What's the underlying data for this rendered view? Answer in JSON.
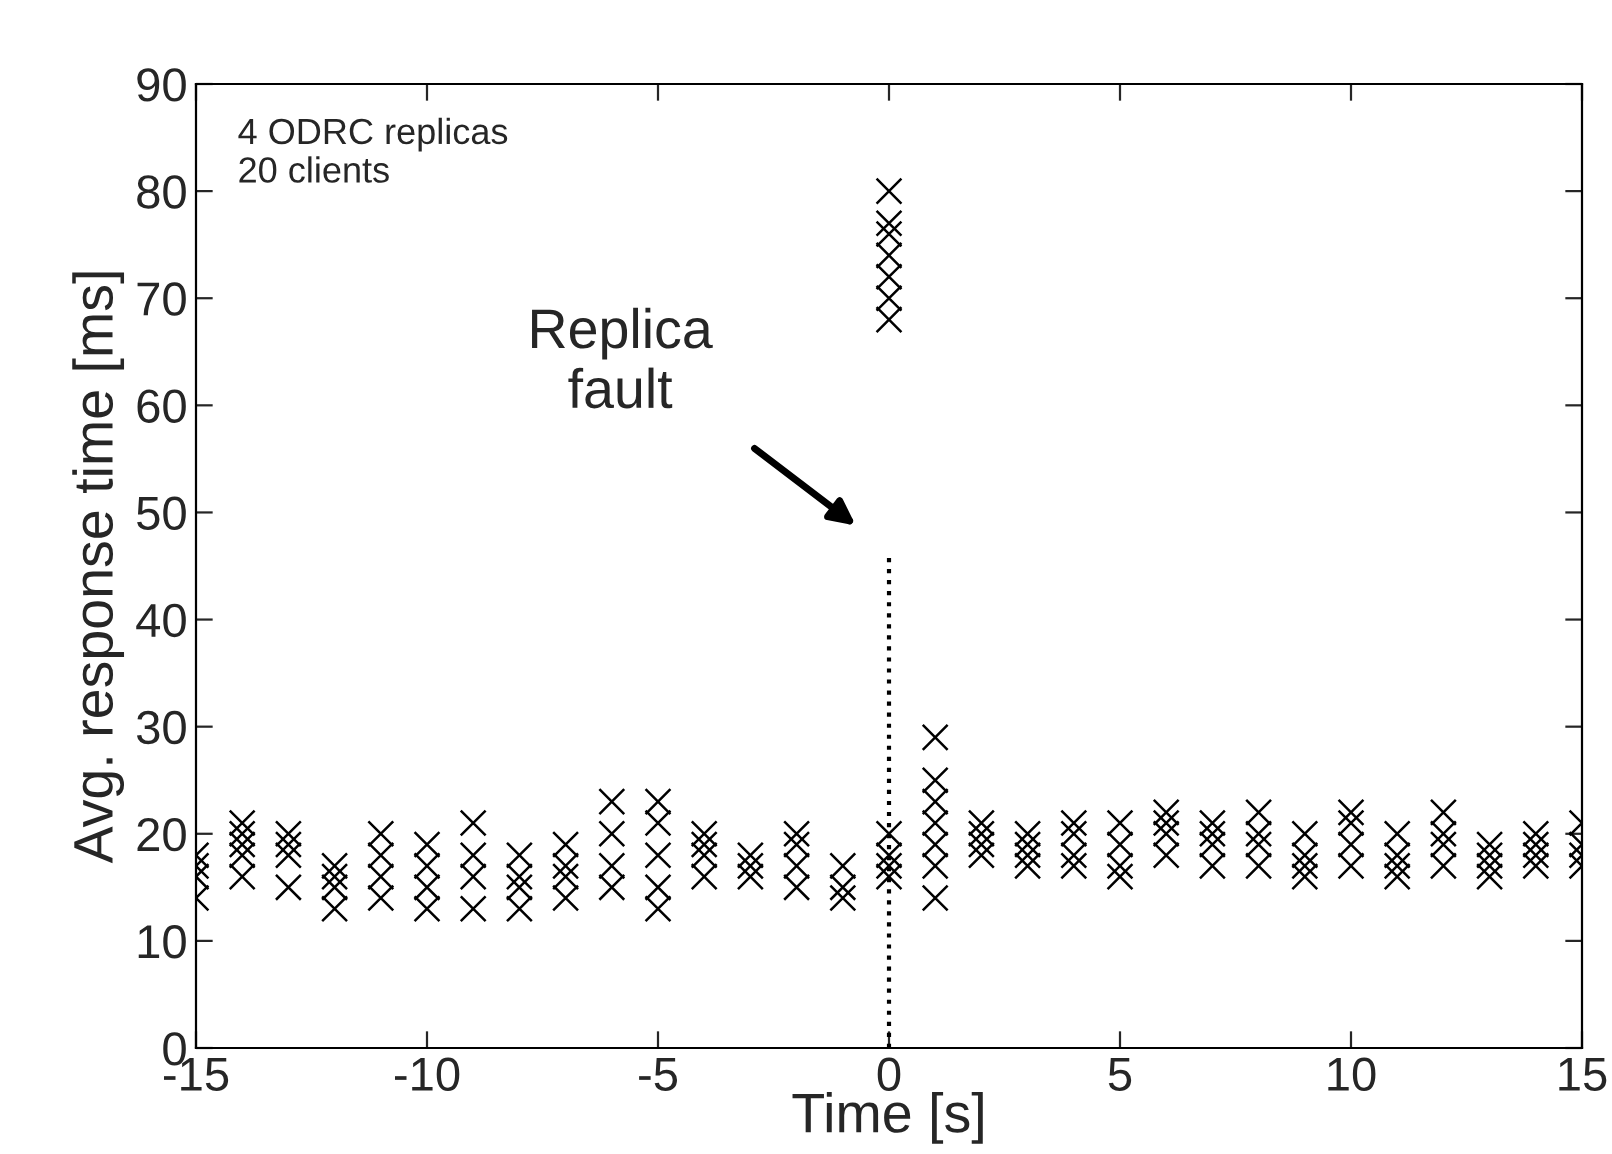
{
  "chart_data": {
    "type": "scatter",
    "xlabel": "Time [s]",
    "ylabel": "Avg. response time [ms]",
    "xlim": [
      -15,
      15
    ],
    "ylim": [
      0,
      90
    ],
    "xticks": [
      -15,
      -10,
      -5,
      0,
      5,
      10,
      15
    ],
    "yticks": [
      0,
      10,
      20,
      30,
      40,
      50,
      60,
      70,
      80,
      90
    ],
    "grid": false,
    "legend": false,
    "marker": "cross",
    "series": [
      {
        "color": "#000000",
        "x": [
          -15,
          -15,
          -15,
          -15,
          -14,
          -14,
          -14,
          -14,
          -14,
          -13,
          -13,
          -13,
          -13,
          -12,
          -12,
          -12,
          -12,
          -11,
          -11,
          -11,
          -11,
          -10,
          -10,
          -10,
          -10,
          -9,
          -9,
          -9,
          -9,
          -8,
          -8,
          -8,
          -8,
          -7,
          -7,
          -7,
          -7,
          -6,
          -6,
          -6,
          -6,
          -5,
          -5,
          -5,
          -5,
          -5,
          -4,
          -4,
          -4,
          -4,
          -3,
          -3,
          -3,
          -2,
          -2,
          -2,
          -2,
          -1,
          -1,
          -1,
          0,
          0,
          0,
          0,
          0,
          0,
          0,
          0,
          0,
          0,
          0,
          1,
          1,
          1,
          1,
          1,
          1,
          1,
          2,
          2,
          2,
          2,
          3,
          3,
          3,
          3,
          4,
          4,
          4,
          4,
          5,
          5,
          5,
          5,
          6,
          6,
          6,
          6,
          7,
          7,
          7,
          7,
          8,
          8,
          8,
          8,
          9,
          9,
          9,
          9,
          10,
          10,
          10,
          10,
          11,
          11,
          11,
          11,
          12,
          12,
          12,
          12,
          13,
          13,
          13,
          13,
          14,
          14,
          14,
          14,
          15,
          15,
          15,
          15
        ],
        "values": [
          14,
          16,
          17,
          18,
          16,
          18,
          19,
          20,
          21,
          15,
          18,
          19,
          20,
          13,
          15,
          16,
          17,
          14,
          16,
          18,
          20,
          13,
          15,
          17,
          19,
          13,
          16,
          18,
          21,
          13,
          15,
          16,
          18,
          14,
          16,
          17,
          19,
          15,
          17,
          20,
          23,
          13,
          15,
          18,
          21,
          23,
          16,
          18,
          19,
          20,
          16,
          17,
          18,
          15,
          17,
          19,
          20,
          14,
          15,
          17,
          16,
          17,
          18,
          20,
          68,
          70,
          72,
          74,
          76,
          77,
          80,
          14,
          17,
          19,
          21,
          23,
          25,
          29,
          18,
          19,
          20,
          21,
          17,
          18,
          19,
          20,
          17,
          18,
          20,
          21,
          16,
          17,
          19,
          21,
          18,
          20,
          21,
          22,
          17,
          19,
          20,
          21,
          17,
          19,
          20,
          22,
          16,
          17,
          18,
          20,
          17,
          19,
          21,
          22,
          16,
          17,
          18,
          20,
          17,
          19,
          20,
          22,
          16,
          17,
          18,
          19,
          17,
          18,
          19,
          20,
          17,
          18,
          19,
          21
        ]
      },
      {
        "type": "line",
        "color": "#000000",
        "line_style": "dotted",
        "marker": "none",
        "x": [
          0,
          0
        ],
        "values": [
          0,
          46
        ]
      }
    ],
    "annotations": [
      "4 ODRC replicas",
      "20 clients",
      "Replica\nfault"
    ]
  }
}
